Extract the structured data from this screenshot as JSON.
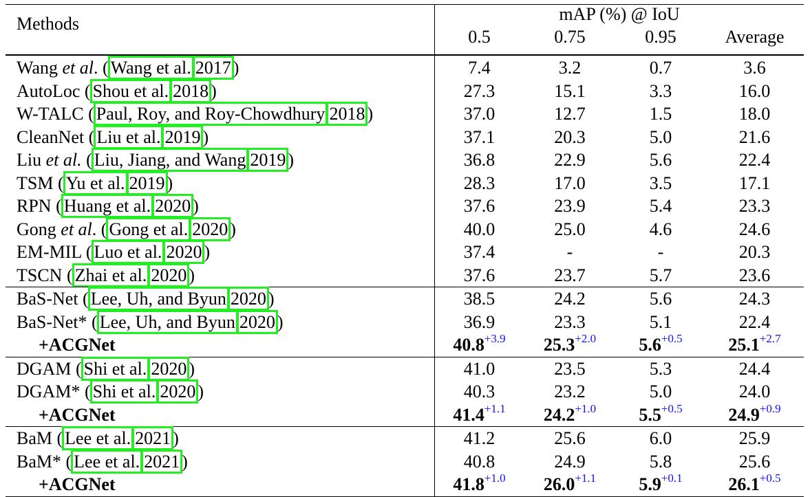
{
  "header": {
    "methods": "Methods",
    "metric": "mAP (%) @ IoU",
    "columns": [
      "0.5",
      "0.75",
      "0.95",
      "Average"
    ]
  },
  "groups": [
    {
      "rows": [
        {
          "pre": "Wang ",
          "it": "et al",
          "post": ". (",
          "cite": [
            "Wang et al.",
            "2017"
          ],
          "tail": ")",
          "vals": [
            "7.4",
            "3.2",
            "0.7",
            "3.6"
          ]
        },
        {
          "pre": "AutoLoc (",
          "cite": [
            "Shou et al.",
            "2018"
          ],
          "tail": ")",
          "vals": [
            "27.3",
            "15.1",
            "3.3",
            "16.0"
          ]
        },
        {
          "pre": "W-TALC (",
          "cite": [
            "Paul, Roy, and Roy-Chowdhury",
            "2018"
          ],
          "tail": ")",
          "vals": [
            "37.0",
            "12.7",
            "1.5",
            "18.0"
          ]
        },
        {
          "pre": "CleanNet (",
          "cite": [
            "Liu et al.",
            "2019"
          ],
          "tail": ")",
          "vals": [
            "37.1",
            "20.3",
            "5.0",
            "21.6"
          ]
        },
        {
          "pre": "Liu ",
          "it": "et al.",
          "post": " (",
          "cite": [
            "Liu, Jiang, and Wang",
            "2019"
          ],
          "tail": ")",
          "vals": [
            "36.8",
            "22.9",
            "5.6",
            "22.4"
          ]
        },
        {
          "pre": "TSM (",
          "cite": [
            "Yu et al.",
            "2019"
          ],
          "tail": ")",
          "vals": [
            "28.3",
            "17.0",
            "3.5",
            "17.1"
          ]
        },
        {
          "pre": "RPN (",
          "cite": [
            "Huang et al.",
            "2020"
          ],
          "tail": ")",
          "vals": [
            "37.6",
            "23.9",
            "5.4",
            "23.3"
          ]
        },
        {
          "pre": "Gong ",
          "it": "et al",
          "post": ". (",
          "cite": [
            "Gong et al.",
            "2020"
          ],
          "tail": ")",
          "vals": [
            "40.0",
            "25.0",
            "4.6",
            "24.6"
          ]
        },
        {
          "pre": "EM-MIL (",
          "cite": [
            "Luo et al.",
            "2020"
          ],
          "tail": ")",
          "vals": [
            "37.4",
            "-",
            "-",
            "20.3"
          ]
        },
        {
          "pre": "TSCN (",
          "cite": [
            "Zhai et al.",
            "2020"
          ],
          "tail": ")",
          "vals": [
            "37.6",
            "23.7",
            "5.7",
            "23.6"
          ]
        }
      ]
    },
    {
      "rows": [
        {
          "pre": "BaS-Net (",
          "cite": [
            "Lee, Uh, and Byun",
            "2020"
          ],
          "tail": ")",
          "vals": [
            "38.5",
            "24.2",
            "5.6",
            "24.3"
          ]
        },
        {
          "pre": "BaS-Net* (",
          "cite": [
            "Lee, Uh, and Byun",
            "2020"
          ],
          "tail": ")",
          "vals": [
            "36.9",
            "23.3",
            "5.1",
            "22.4"
          ]
        },
        {
          "acg": "+ACGNet",
          "vals": [
            "40.8",
            "25.3",
            "5.6",
            "25.1"
          ],
          "gains": [
            "+3.9",
            "+2.0",
            "+0.5",
            "+2.7"
          ]
        }
      ]
    },
    {
      "rows": [
        {
          "pre": "DGAM (",
          "cite": [
            "Shi et al.",
            "2020"
          ],
          "tail": ")",
          "vals": [
            "41.0",
            "23.5",
            "5.3",
            "24.4"
          ]
        },
        {
          "pre": "DGAM* (",
          "cite": [
            "Shi et al.",
            "2020"
          ],
          "tail": ")",
          "vals": [
            "40.3",
            "23.2",
            "5.0",
            "24.0"
          ]
        },
        {
          "acg": "+ACGNet",
          "vals": [
            "41.4",
            "24.2",
            "5.5",
            "24.9"
          ],
          "gains": [
            "+1.1",
            "+1.0",
            "+0.5",
            "+0.9"
          ]
        }
      ]
    },
    {
      "rows": [
        {
          "pre": "BaM (",
          "cite": [
            "Lee et al.",
            "2021"
          ],
          "tail": ")",
          "vals": [
            "41.2",
            "25.6",
            "6.0",
            "25.9"
          ]
        },
        {
          "pre": "BaM* (",
          "cite": [
            "Lee et al.",
            "2021"
          ],
          "tail": ")",
          "vals": [
            "40.8",
            "24.9",
            "5.8",
            "25.6"
          ]
        },
        {
          "acg": "+ACGNet",
          "vals": [
            "41.8",
            "26.0",
            "5.9",
            "26.1"
          ],
          "gains": [
            "+1.0",
            "+1.1",
            "+0.1",
            "+0.5"
          ]
        }
      ]
    }
  ],
  "colors": {
    "citation_box": "#22ee22",
    "gain": "#1010ff"
  }
}
